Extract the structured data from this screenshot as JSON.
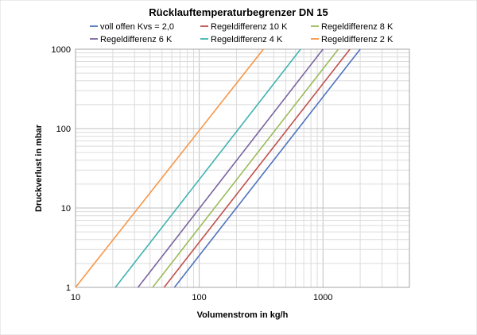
{
  "chart_data": {
    "type": "line",
    "title": "Rücklauftemperaturbegrenzer DN 15",
    "xlabel": "Volumenstrom in kg/h",
    "ylabel": "Druckverlust in mbar",
    "x_scale": "log",
    "y_scale": "log",
    "xlim": [
      10,
      5000
    ],
    "ylim": [
      1,
      1000
    ],
    "x_ticks": [
      "10",
      "100",
      "1000"
    ],
    "y_ticks": [
      "1",
      "10",
      "100",
      "1000"
    ],
    "grid": true,
    "legend_position": "top",
    "series": [
      {
        "name": "voll offen Kvs = 2,0",
        "color": "#4f73be",
        "x": [
          63,
          2000
        ],
        "y": [
          1,
          1000
        ]
      },
      {
        "name": "Regeldifferenz  10 K",
        "color": "#c0504d",
        "x": [
          52,
          1650
        ],
        "y": [
          1,
          1000
        ]
      },
      {
        "name": "Regeldifferenz 8  K",
        "color": "#9bbb59",
        "x": [
          42,
          1330
        ],
        "y": [
          1,
          1000
        ]
      },
      {
        "name": "Regeldifferenz 6 K",
        "color": "#7a64a0",
        "x": [
          32,
          1000
        ],
        "y": [
          1,
          1000
        ]
      },
      {
        "name": "Regeldifferenz 4 K",
        "color": "#3fb3b0",
        "x": [
          21,
          660
        ],
        "y": [
          1,
          1000
        ]
      },
      {
        "name": "Regeldifferenz 2 K",
        "color": "#f79646",
        "x": [
          10,
          330
        ],
        "y": [
          1,
          1000
        ]
      }
    ]
  }
}
